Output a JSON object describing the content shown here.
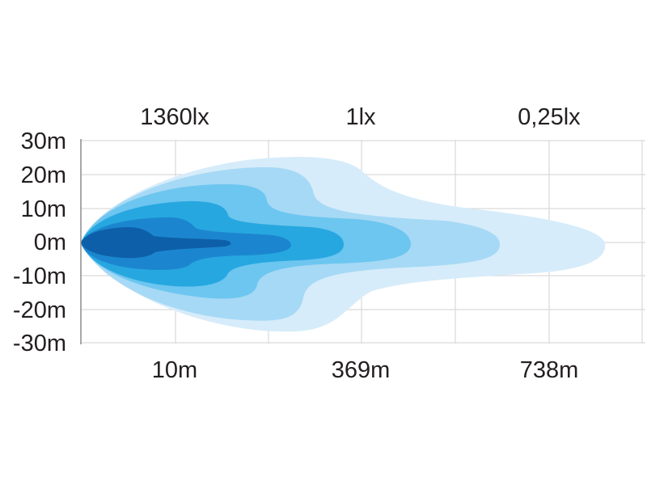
{
  "chart_data": {
    "type": "other",
    "top_labels": [
      "1360lx",
      "1lx",
      "0,25lx"
    ],
    "bottom_labels": [
      "10m",
      "369m",
      "738m"
    ],
    "y_tick_labels": [
      "30m",
      "20m",
      "10m",
      "0m",
      "-10m",
      "-20m",
      "-30m"
    ],
    "ylim": [
      -30,
      30
    ],
    "grid": true,
    "contours": [
      {
        "level": 1,
        "color": "#d6ecfa"
      },
      {
        "level": 2,
        "color": "#a6d9f5"
      },
      {
        "level": 3,
        "color": "#6dc6f0"
      },
      {
        "level": 4,
        "color": "#27a7e0"
      },
      {
        "level": 5,
        "color": "#1b86cf"
      },
      {
        "level": 6,
        "color": "#0e5fa9"
      }
    ]
  }
}
